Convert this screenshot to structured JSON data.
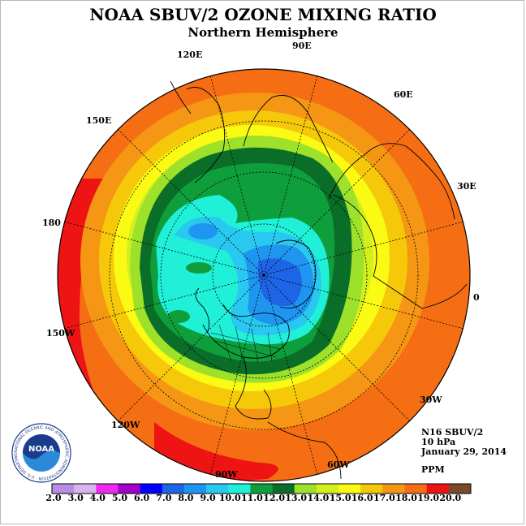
{
  "title": "NOAA SBUV/2 OZONE MIXING RATIO",
  "subtitle": "Northern Hemisphere",
  "longitude_labels": [
    {
      "id": "90E",
      "text": "90E"
    },
    {
      "id": "60E",
      "text": "60E"
    },
    {
      "id": "30E",
      "text": "30E"
    },
    {
      "id": "0",
      "text": "0"
    },
    {
      "id": "30W",
      "text": "30W"
    },
    {
      "id": "60W",
      "text": "60W"
    },
    {
      "id": "90W",
      "text": "90W"
    },
    {
      "id": "120W",
      "text": "120W"
    },
    {
      "id": "150W",
      "text": "150W"
    },
    {
      "id": "180",
      "text": "180"
    },
    {
      "id": "150E",
      "text": "150E"
    },
    {
      "id": "120E",
      "text": "120E"
    }
  ],
  "info": {
    "instrument": "N16 SBUV/2",
    "level": "10 hPa",
    "date": "January 29, 2014",
    "units": "PPM"
  },
  "logo": {
    "text": "NOAA",
    "ring_text": "NATIONAL OCEANIC AND ATMOSPHERIC ADMINISTRATION · U.S. DEPARTMENT OF COMMERCE"
  },
  "colorbar": {
    "labels": [
      "2.0",
      "3.0",
      "4.0",
      "5.0",
      "6.0",
      "7.0",
      "8.0",
      "9.0",
      "10.0",
      "11.0",
      "12.0",
      "13.0",
      "14.0",
      "15.0",
      "16.0",
      "17.0",
      "18.0",
      "19.0",
      "20.0"
    ],
    "colors": [
      "#b98ce6",
      "#dab4ee",
      "#ee2aee",
      "#a000c8",
      "#0000ff",
      "#1e64e6",
      "#1e96f0",
      "#28c8f0",
      "#20f0d8",
      "#0f9e3c",
      "#0a6e28",
      "#9ee12a",
      "#d2f01e",
      "#fafa14",
      "#f5c80a",
      "#f59614",
      "#f56e14",
      "#ee1414",
      "#7a4a2a"
    ]
  },
  "map_colors": {
    "ring_19": "#ee1414",
    "ring_18": "#f56e14",
    "ring_17": "#f59614",
    "ring_16": "#f5c80a",
    "ring_15": "#fafa14",
    "ring_14": "#d2f01e",
    "ring_13": "#9ee12a",
    "ring_12": "#0a6e28",
    "ring_11": "#0f9e3c",
    "ring_10": "#20f0d8",
    "ring_9": "#28c8f0",
    "ring_8": "#1e96f0",
    "ring_7": "#1e64e6"
  }
}
